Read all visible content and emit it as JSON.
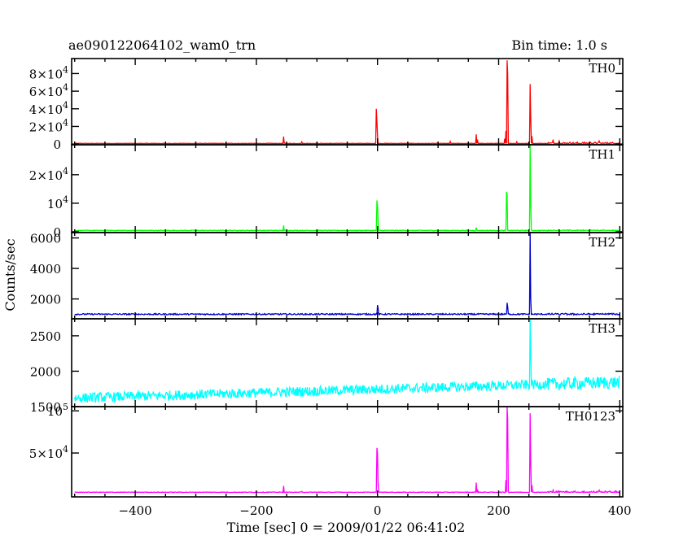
{
  "chart_data": {
    "type": "line",
    "title": "ae090122064102_wam0_trn",
    "subtitle": "Bin time: 1.0 s",
    "xlabel": "Time [sec] 0 = 2009/01/22 06:41:02",
    "ylabel": "Counts/sec",
    "xlim": [
      -505,
      405
    ],
    "x_ticks": [
      -400,
      -200,
      0,
      200,
      400
    ],
    "x_tick_labels": [
      "−400",
      "−200",
      "0",
      "200",
      "400"
    ],
    "grid": false,
    "panels": [
      {
        "name": "TH0",
        "color": "#ff0000",
        "ylim": [
          -800,
          97000
        ],
        "yticks": [
          {
            "value": 0,
            "base": "0",
            "exp": ""
          },
          {
            "value": 20000,
            "base": "2×10",
            "exp": "4"
          },
          {
            "value": 40000,
            "base": "4×10",
            "exp": "4"
          },
          {
            "value": 60000,
            "base": "6×10",
            "exp": "4"
          },
          {
            "value": 80000,
            "base": "8×10",
            "exp": "4"
          }
        ],
        "baseline": 700,
        "noise": 220,
        "trend": 0.0,
        "late_noise": 1500,
        "spikes": [
          [
            -155,
            8500
          ],
          [
            -125,
            2400
          ],
          [
            -2,
            40000
          ],
          [
            -1,
            25000
          ],
          [
            0,
            10000
          ],
          [
            120,
            3000
          ],
          [
            163,
            11000
          ],
          [
            165,
            5000
          ],
          [
            210,
            6000
          ],
          [
            212,
            15000
          ],
          [
            214,
            95000
          ],
          [
            215,
            80000
          ],
          [
            230,
            2500
          ],
          [
            252,
            68000
          ],
          [
            253,
            30000
          ],
          [
            255,
            9000
          ],
          [
            290,
            5000
          ],
          [
            300,
            3500
          ],
          [
            366,
            3500
          ]
        ]
      },
      {
        "name": "TH1",
        "color": "#00ff00",
        "ylim": [
          -300,
          30500
        ],
        "yticks": [
          {
            "value": 0,
            "base": "0",
            "exp": ""
          },
          {
            "value": 10000,
            "base": "10",
            "exp": "4"
          },
          {
            "value": 20000,
            "base": "2×10",
            "exp": "4"
          }
        ],
        "baseline": 450,
        "noise": 120,
        "trend": 0.0,
        "late_noise": 200,
        "spikes": [
          [
            -155,
            2200
          ],
          [
            -1,
            11000
          ],
          [
            0,
            9000
          ],
          [
            1,
            4000
          ],
          [
            163,
            1500
          ],
          [
            213,
            14000
          ],
          [
            214,
            13000
          ],
          [
            252,
            30500
          ],
          [
            253,
            10000
          ]
        ]
      },
      {
        "name": "TH2",
        "color": "#0000cc",
        "ylim": [
          700,
          6350
        ],
        "yticks": [
          {
            "value": 2000,
            "base": "2000",
            "exp": ""
          },
          {
            "value": 4000,
            "base": "4000",
            "exp": ""
          },
          {
            "value": 6000,
            "base": "6000",
            "exp": ""
          }
        ],
        "baseline": 1000,
        "noise": 45,
        "trend": 0.0,
        "late_noise": 60,
        "spikes": [
          [
            0,
            1600
          ],
          [
            1,
            1400
          ],
          [
            214,
            1750
          ],
          [
            215,
            1500
          ],
          [
            252,
            6350
          ],
          [
            253,
            2000
          ]
        ]
      },
      {
        "name": "TH3",
        "color": "#00ffff",
        "ylim": [
          1500,
          2740
        ],
        "yticks": [
          {
            "value": 1500,
            "base": "1500",
            "exp": ""
          },
          {
            "value": 2000,
            "base": "2000",
            "exp": ""
          },
          {
            "value": 2500,
            "base": "2500",
            "exp": ""
          }
        ],
        "baseline": 1620,
        "noise": 70,
        "trend": 0.25,
        "late_noise": 90,
        "spikes": [
          [
            252,
            2740
          ],
          [
            253,
            2300
          ]
        ]
      },
      {
        "name": "TH0123",
        "color": "#ff00ff",
        "ylim": [
          -2000,
          105000
        ],
        "yticks": [
          {
            "value": 50000,
            "base": "5×10",
            "exp": "4"
          },
          {
            "value": 100000,
            "base": "10",
            "exp": "5"
          }
        ],
        "baseline": 3500,
        "noise": 350,
        "trend": 0.0,
        "late_noise": 1500,
        "spikes": [
          [
            -155,
            11000
          ],
          [
            -125,
            4500
          ],
          [
            -1,
            56000
          ],
          [
            0,
            50000
          ],
          [
            1,
            15000
          ],
          [
            163,
            15000
          ],
          [
            165,
            7000
          ],
          [
            212,
            18000
          ],
          [
            214,
            105000
          ],
          [
            215,
            90000
          ],
          [
            252,
            97000
          ],
          [
            253,
            40000
          ],
          [
            255,
            12000
          ],
          [
            290,
            6000
          ],
          [
            366,
            6000
          ]
        ]
      }
    ]
  }
}
